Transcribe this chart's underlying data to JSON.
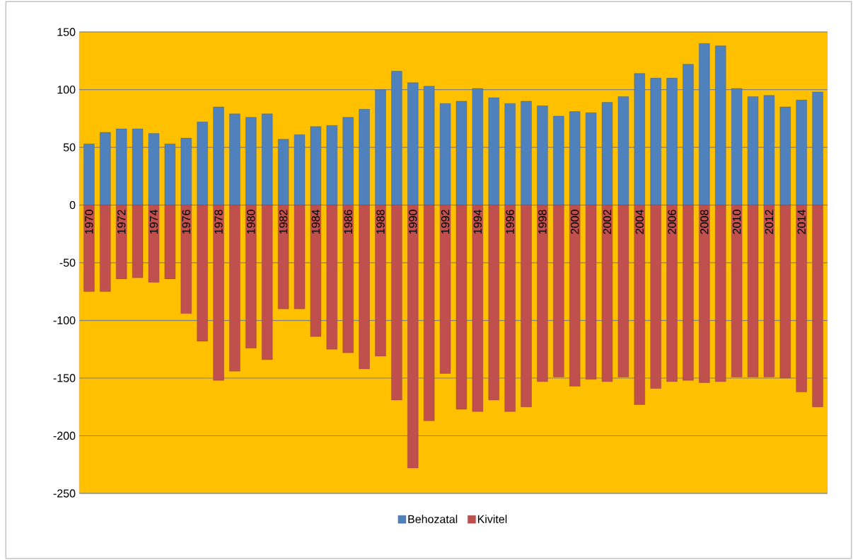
{
  "chart_data": {
    "type": "bar",
    "stacked": true,
    "categories": [
      "1970",
      null,
      "1972",
      null,
      "1974",
      null,
      "1976",
      null,
      "1978",
      null,
      "1980",
      null,
      "1982",
      null,
      "1984",
      null,
      "1986",
      null,
      "1988",
      null,
      "1990",
      null,
      "1992",
      null,
      "1994",
      null,
      "1996",
      null,
      "1998",
      null,
      "2000",
      null,
      "2002",
      null,
      "2004",
      null,
      "2006",
      null,
      "2008",
      null,
      "2010",
      null,
      "2012",
      null,
      "2014",
      null
    ],
    "series": [
      {
        "name": "Behozatal",
        "color": "#4f81bd",
        "values": [
          53,
          63,
          66,
          66,
          62,
          53,
          58,
          72,
          85,
          79,
          76,
          79,
          57,
          61,
          68,
          69,
          76,
          83,
          100,
          116,
          106,
          103,
          88,
          90,
          101,
          93,
          88,
          90,
          86,
          77,
          81,
          80,
          89,
          94,
          114,
          110,
          110,
          122,
          140,
          138,
          101,
          94,
          95,
          85,
          91,
          98
        ]
      },
      {
        "name": "Kivitel",
        "color": "#c0504d",
        "values": [
          -75,
          -75,
          -64,
          -63,
          -67,
          -64,
          -94,
          -118,
          -152,
          -144,
          -124,
          -134,
          -90,
          -90,
          -114,
          -125,
          -128,
          -142,
          -131,
          -169,
          -228,
          -187,
          -146,
          -177,
          -179,
          -169,
          -179,
          -175,
          -153,
          -149,
          -157,
          -151,
          -153,
          -149,
          -173,
          -159,
          -153,
          -152,
          -154,
          -153,
          -149,
          -149,
          -149,
          -150,
          -162,
          -175
        ]
      }
    ],
    "ylim": [
      -250,
      150
    ],
    "yticks": [
      -250,
      -200,
      -150,
      -100,
      -50,
      0,
      50,
      100,
      150
    ],
    "grid": "y",
    "legend": "bottom"
  }
}
